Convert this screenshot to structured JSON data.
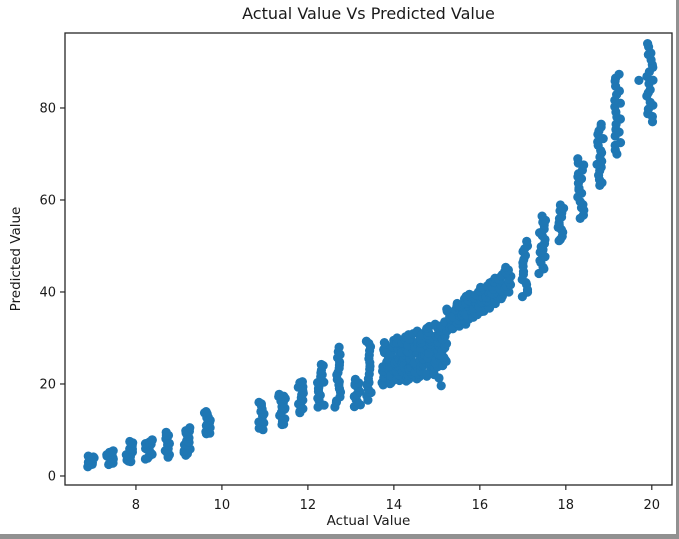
{
  "figure": {
    "title": "Actual Value Vs Predicted Value",
    "x_axis_label": "Actual Value",
    "y_axis_label": "Predicted Value"
  },
  "colors": {
    "marker": "#1f77b4",
    "axis": "#262626",
    "text": "#1a1a1a",
    "background": "#ffffff",
    "screenshot_edge": "#919191"
  },
  "chart_data": {
    "type": "scatter",
    "title": "Actual Value Vs Predicted Value",
    "xlabel": "Actual Value",
    "ylabel": "Predicted Value",
    "grid": false,
    "legend": null,
    "marker_color": "#1f77b4",
    "marker_radius_px": 4.6,
    "xlim": [
      6.35,
      20.47
    ],
    "ylim": [
      -1.96,
      96.3
    ],
    "x_ticks": [
      8,
      10,
      12,
      14,
      16,
      18,
      20
    ],
    "y_ticks": [
      0,
      20,
      40,
      60,
      80
    ],
    "cluster_note": "Points form vertical clusters at discrete x (actual) values; each cluster spans y_min..y_max (predicted) with n overlapping dots.",
    "clusters": [
      {
        "x": 6.95,
        "y_min": 2.0,
        "y_max": 4.5,
        "n": 12
      },
      {
        "x": 7.4,
        "y_min": 2.5,
        "y_max": 5.5,
        "n": 12
      },
      {
        "x": 7.85,
        "y_min": 3.0,
        "y_max": 7.5,
        "n": 14
      },
      {
        "x": 8.3,
        "y_min": 3.5,
        "y_max": 8.0,
        "n": 14
      },
      {
        "x": 8.7,
        "y_min": 4.0,
        "y_max": 9.5,
        "n": 14
      },
      {
        "x": 9.2,
        "y_min": 4.5,
        "y_max": 10.5,
        "n": 16
      },
      {
        "x": 9.65,
        "y_min": 9.0,
        "y_max": 14.0,
        "n": 14
      },
      {
        "x": 10.9,
        "y_min": 10.0,
        "y_max": 16.0,
        "n": 14
      },
      {
        "x": 11.4,
        "y_min": 11.0,
        "y_max": 18.0,
        "n": 16
      },
      {
        "x": 11.85,
        "y_min": 13.5,
        "y_max": 20.5,
        "n": 16
      },
      {
        "x": 12.3,
        "y_min": 15.0,
        "y_max": 24.5,
        "n": 16
      },
      {
        "x": 12.7,
        "y_min": 15.0,
        "y_max": 28.0,
        "n": 18
      },
      {
        "x": 13.15,
        "y_min": 15.0,
        "y_max": 21.0,
        "n": 13
      },
      {
        "x": 13.4,
        "y_min": 16.5,
        "y_max": 29.5,
        "n": 17
      },
      {
        "x": 13.8,
        "y_min": 19.5,
        "y_max": 29.0,
        "n": 18
      },
      {
        "x": 13.95,
        "y_min": 20.0,
        "y_max": 29.5,
        "n": 20
      },
      {
        "x": 14.1,
        "y_min": 20.5,
        "y_max": 30.0,
        "n": 22
      },
      {
        "x": 14.25,
        "y_min": 20.5,
        "y_max": 30.5,
        "n": 22
      },
      {
        "x": 14.4,
        "y_min": 21.0,
        "y_max": 31.0,
        "n": 22
      },
      {
        "x": 14.55,
        "y_min": 21.0,
        "y_max": 31.5,
        "n": 20
      },
      {
        "x": 14.7,
        "y_min": 21.5,
        "y_max": 32.0,
        "n": 20
      },
      {
        "x": 14.85,
        "y_min": 22.0,
        "y_max": 32.5,
        "n": 20
      },
      {
        "x": 15.0,
        "y_min": 22.0,
        "y_max": 33.0,
        "n": 18
      },
      {
        "x": 15.15,
        "y_min": 24.0,
        "y_max": 33.5,
        "n": 16
      },
      {
        "x": 15.3,
        "y_min": 31.5,
        "y_max": 36.5,
        "n": 12
      },
      {
        "x": 15.45,
        "y_min": 32.0,
        "y_max": 37.5,
        "n": 12
      },
      {
        "x": 15.6,
        "y_min": 33.0,
        "y_max": 38.5,
        "n": 12
      },
      {
        "x": 15.75,
        "y_min": 34.0,
        "y_max": 39.5,
        "n": 12
      },
      {
        "x": 15.9,
        "y_min": 34.5,
        "y_max": 40.0,
        "n": 12
      },
      {
        "x": 16.05,
        "y_min": 35.5,
        "y_max": 41.0,
        "n": 12
      },
      {
        "x": 16.2,
        "y_min": 36.5,
        "y_max": 42.0,
        "n": 12
      },
      {
        "x": 16.35,
        "y_min": 37.5,
        "y_max": 43.0,
        "n": 12
      },
      {
        "x": 16.5,
        "y_min": 38.5,
        "y_max": 44.5,
        "n": 12
      },
      {
        "x": 16.65,
        "y_min": 40.0,
        "y_max": 45.5,
        "n": 10
      },
      {
        "x": 17.05,
        "y_min": 39.0,
        "y_max": 51.0,
        "n": 16
      },
      {
        "x": 17.45,
        "y_min": 44.0,
        "y_max": 56.5,
        "n": 18
      },
      {
        "x": 17.9,
        "y_min": 51.0,
        "y_max": 59.0,
        "n": 14
      },
      {
        "x": 18.35,
        "y_min": 56.0,
        "y_max": 69.0,
        "n": 18
      },
      {
        "x": 18.8,
        "y_min": 63.0,
        "y_max": 76.5,
        "n": 18
      },
      {
        "x": 19.2,
        "y_min": 70.0,
        "y_max": 87.5,
        "n": 20
      },
      {
        "x": 19.95,
        "y_min": 77.0,
        "y_max": 94.0,
        "n": 20
      }
    ],
    "outlier_points": [
      {
        "x": 19.7,
        "y": 86.0
      },
      {
        "x": 15.05,
        "y": 21.3
      },
      {
        "x": 15.1,
        "y": 19.6
      }
    ]
  }
}
